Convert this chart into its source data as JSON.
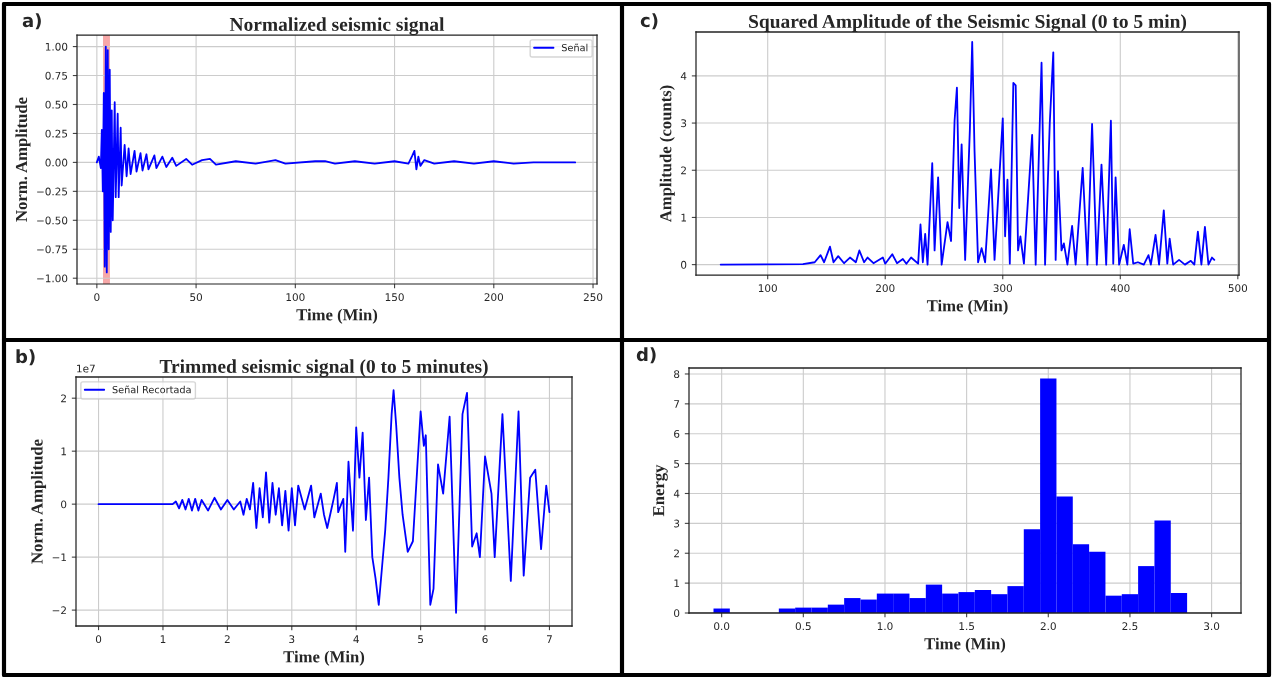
{
  "chart_data": [
    {
      "type": "line",
      "title": "Normalized seismic signal",
      "xlabel": "Time (Min)",
      "ylabel": "Norm. Amplitude",
      "annotations": [
        "a)"
      ],
      "series": [
        {
          "name": "Señal",
          "color": "#0000ff",
          "x": [
            0,
            1,
            2,
            2.5,
            3,
            3.5,
            4,
            4.5,
            5,
            5.5,
            6,
            6.5,
            7,
            7.5,
            8,
            9,
            9.5,
            10.5,
            11,
            12,
            12.5,
            14,
            15,
            16,
            17,
            19,
            20,
            22,
            23,
            25,
            26,
            29,
            30,
            33,
            35,
            38,
            40,
            45,
            48,
            53,
            57,
            60,
            70,
            80,
            90,
            95,
            110,
            115,
            120,
            130,
            140,
            150,
            157,
            159,
            160,
            161,
            162,
            163,
            165,
            170,
            180,
            190,
            200,
            210,
            220,
            230,
            241
          ],
          "values": [
            0,
            0.05,
            -0.05,
            0.28,
            -0.25,
            0.6,
            -0.9,
            1.0,
            -0.95,
            0.97,
            -0.75,
            0.8,
            -0.6,
            0.45,
            -0.5,
            0.52,
            -0.3,
            0.42,
            -0.3,
            0.3,
            -0.2,
            0.15,
            -0.12,
            0.12,
            -0.1,
            0.1,
            -0.08,
            0.08,
            -0.07,
            0.07,
            -0.06,
            0.06,
            -0.05,
            0.05,
            -0.04,
            0.04,
            -0.03,
            0.03,
            -0.02,
            0.02,
            0.03,
            -0.02,
            0.01,
            -0.01,
            0.02,
            -0.01,
            0.01,
            0.01,
            -0.01,
            0.01,
            -0.01,
            0.01,
            -0.01,
            0.06,
            0.1,
            -0.06,
            0.05,
            -0.03,
            0.02,
            -0.01,
            0.01,
            -0.01,
            0.01,
            -0.01,
            0,
            0,
            0
          ]
        }
      ],
      "bands": [
        {
          "axis": "x",
          "from": 3.1,
          "to": 6.6,
          "color": "#f7a8a8"
        }
      ],
      "xlim": [
        -10,
        252
      ],
      "ylim": [
        -1.05,
        1.1
      ],
      "xticks": [
        0,
        50,
        100,
        150,
        200,
        250
      ],
      "yticks": [
        {
          "value": -1,
          "label": "−1.00"
        },
        {
          "value": -0.75,
          "label": "−0.75"
        },
        {
          "value": -0.5,
          "label": "−0.50"
        },
        {
          "value": -0.25,
          "label": "−0.25"
        },
        {
          "value": 0,
          "label": "0.00"
        },
        {
          "value": 0.25,
          "label": "0.25"
        },
        {
          "value": 0.5,
          "label": "0.50"
        },
        {
          "value": 0.75,
          "label": "0.75"
        },
        {
          "value": 1,
          "label": "1.00"
        }
      ],
      "grid": true,
      "legend": "top right"
    },
    {
      "type": "line",
      "title": "Squared Amplitude of the Seismic Signal (0 to 5 min)",
      "xlabel": "Time (Min)",
      "ylabel": "Amplitude (counts)",
      "annotations": [
        "c)"
      ],
      "series": [
        {
          "color": "#0000ff",
          "x": [
            60,
            130,
            140,
            145,
            148,
            153,
            156,
            160,
            165,
            170,
            175,
            178,
            182,
            185,
            190,
            198,
            200,
            206,
            210,
            215,
            218,
            222,
            228,
            230,
            232,
            234,
            236,
            240,
            242,
            245,
            248,
            253,
            256,
            259,
            261,
            263,
            265,
            268,
            272,
            274,
            276,
            279,
            282,
            285,
            290,
            293,
            300,
            302,
            304,
            306,
            309,
            311,
            313,
            315,
            318,
            325,
            328,
            333,
            336,
            340,
            343,
            345,
            347,
            350,
            352,
            355,
            359,
            362,
            368,
            372,
            376,
            380,
            384,
            388,
            392,
            394,
            396,
            399,
            403,
            406,
            408,
            411,
            415,
            420,
            424,
            426,
            430,
            433,
            437,
            440,
            442,
            445,
            450,
            455,
            460,
            463,
            466,
            469,
            472,
            475,
            478,
            480
          ],
          "values": [
            0,
            0.01,
            0.05,
            0.2,
            0.05,
            0.38,
            0.05,
            0.18,
            0.03,
            0.15,
            0.05,
            0.3,
            0.05,
            0.15,
            0.03,
            0.15,
            0.02,
            0.22,
            0.03,
            0.12,
            0.02,
            0.15,
            0.02,
            0.85,
            0.05,
            0.65,
            0,
            2.15,
            0.3,
            1.85,
            0,
            0.9,
            0.5,
            3.05,
            3.75,
            1.2,
            2.55,
            0.1,
            2.85,
            4.72,
            2.4,
            0.05,
            0.35,
            0.05,
            2.02,
            0.1,
            3.1,
            0.6,
            1.8,
            0.02,
            3.85,
            3.8,
            0.3,
            0.6,
            0.02,
            2.75,
            0,
            4.28,
            0,
            3.0,
            4.5,
            0.1,
            1.98,
            0.3,
            0.45,
            0,
            0.82,
            0,
            2.05,
            0,
            2.98,
            0,
            2.12,
            0,
            3.05,
            0.02,
            1.85,
            0,
            0.42,
            0,
            0.75,
            0.02,
            0.05,
            0,
            0.2,
            0,
            0.63,
            0,
            1.15,
            0.02,
            0.55,
            0,
            0.1,
            0,
            0.08,
            0,
            0.7,
            0,
            0.8,
            0,
            0.15,
            0.1
          ]
        }
      ],
      "xlim": [
        39,
        501
      ],
      "ylim": [
        -0.22,
        4.93
      ],
      "xticks": [
        100,
        200,
        300,
        400,
        500
      ],
      "yticks": [
        0,
        1,
        2,
        3,
        4
      ],
      "grid": true
    },
    {
      "type": "line",
      "title": "Trimmed seismic signal (0 to 5 minutes)",
      "xlabel": "Time (Min)",
      "ylabel": "Norm. Amplitude",
      "annotations": [
        "b)",
        "1e7"
      ],
      "series": [
        {
          "name": "Señal Recortada",
          "color": "#0000ff",
          "x": [
            0,
            1.0,
            1.15,
            1.2,
            1.25,
            1.3,
            1.35,
            1.4,
            1.45,
            1.5,
            1.55,
            1.6,
            1.7,
            1.8,
            1.9,
            2.0,
            2.1,
            2.2,
            2.25,
            2.3,
            2.35,
            2.4,
            2.45,
            2.5,
            2.55,
            2.6,
            2.65,
            2.7,
            2.75,
            2.8,
            2.85,
            2.9,
            2.95,
            3.0,
            3.05,
            3.1,
            3.2,
            3.3,
            3.35,
            3.45,
            3.5,
            3.55,
            3.65,
            3.7,
            3.72,
            3.8,
            3.83,
            3.88,
            3.95,
            4.0,
            4.05,
            4.1,
            4.15,
            4.2,
            4.25,
            4.3,
            4.35,
            4.4,
            4.45,
            4.5,
            4.55,
            4.58,
            4.62,
            4.67,
            4.72,
            4.8,
            4.88,
            5.0,
            5.05,
            5.08,
            5.15,
            5.2,
            5.27,
            5.35,
            5.45,
            5.55,
            5.65,
            5.72,
            5.8,
            5.87,
            5.92,
            6.0,
            6.1,
            6.15,
            6.27,
            6.4,
            6.52,
            6.6,
            6.7,
            6.78,
            6.87,
            6.95,
            7.0
          ],
          "values": [
            0,
            0,
            0,
            0.05,
            -0.08,
            0.08,
            -0.1,
            0.1,
            -0.12,
            0.1,
            -0.12,
            0.08,
            -0.12,
            0.12,
            -0.1,
            0.08,
            -0.1,
            0.05,
            -0.2,
            0.1,
            -0.1,
            0.4,
            -0.45,
            0.3,
            -0.25,
            0.6,
            -0.35,
            0.4,
            -0.2,
            0.3,
            -0.4,
            0.25,
            -0.5,
            0.3,
            -0.4,
            0.35,
            -0.1,
            0.35,
            -0.25,
            0.2,
            -0.2,
            -0.45,
            0.1,
            0.4,
            -0.15,
            0.1,
            -0.9,
            0.8,
            -0.5,
            1.45,
            0.5,
            1.35,
            -0.3,
            0.5,
            -1.0,
            -1.4,
            -1.9,
            -1.2,
            -0.5,
            0.5,
            1.7,
            2.15,
            1.5,
            0.5,
            -0.2,
            -0.9,
            -0.7,
            1.75,
            1.1,
            1.3,
            -1.9,
            -1.6,
            0.75,
            0.2,
            1.65,
            -2.05,
            1.7,
            2.1,
            -0.8,
            -0.55,
            -1.0,
            0.9,
            0.2,
            -1.0,
            1.7,
            -1.45,
            1.75,
            -1.35,
            0.5,
            0.65,
            -0.85,
            0.35,
            -0.15
          ]
        }
      ],
      "xlim": [
        -0.35,
        7.35
      ],
      "ylim": [
        -2.3,
        2.4
      ],
      "xticks": [
        0,
        1,
        2,
        3,
        4,
        5,
        6,
        7
      ],
      "yticks": [
        {
          "value": -2,
          "label": "−2"
        },
        {
          "value": -1,
          "label": "−1"
        },
        0,
        1,
        2
      ],
      "grid": true,
      "legend": "top left"
    },
    {
      "type": "histogram",
      "xlabel": "Time (Min)",
      "ylabel": "Energy",
      "annotations": [
        "d)"
      ],
      "bins": [
        -0.05,
        0.05,
        0.15,
        0.25,
        0.35,
        0.45,
        0.55,
        0.65,
        0.75,
        0.85,
        0.95,
        1.05,
        1.15,
        1.25,
        1.35,
        1.45,
        1.55,
        1.65,
        1.75,
        1.85,
        1.95,
        2.05,
        2.15,
        2.25,
        2.35,
        2.45,
        2.55,
        2.65,
        2.75,
        2.85,
        2.95,
        3.05
      ],
      "values": [
        0.15,
        null,
        null,
        null,
        0.15,
        0.18,
        0.18,
        0.28,
        0.5,
        0.45,
        0.65,
        0.65,
        0.5,
        0.95,
        0.65,
        0.7,
        0.77,
        0.63,
        0.9,
        2.8,
        7.85,
        3.9,
        2.3,
        2.05,
        0.58,
        0.63,
        1.57,
        3.1,
        0.67,
        null,
        null
      ],
      "color": "#0000ff",
      "xlim": [
        -0.2,
        3.18
      ],
      "ylim": [
        0,
        8.2
      ],
      "xticks": [
        {
          "value": 0,
          "label": "0.0"
        },
        {
          "value": 0.5,
          "label": "0.5"
        },
        {
          "value": 1,
          "label": "1.0"
        },
        {
          "value": 1.5,
          "label": "1.5"
        },
        {
          "value": 2,
          "label": "2.0"
        },
        {
          "value": 2.5,
          "label": "2.5"
        },
        {
          "value": 3,
          "label": "3.0"
        }
      ],
      "yticks": [
        0,
        1,
        2,
        3,
        4,
        5,
        6,
        7,
        8
      ],
      "grid": true
    }
  ]
}
